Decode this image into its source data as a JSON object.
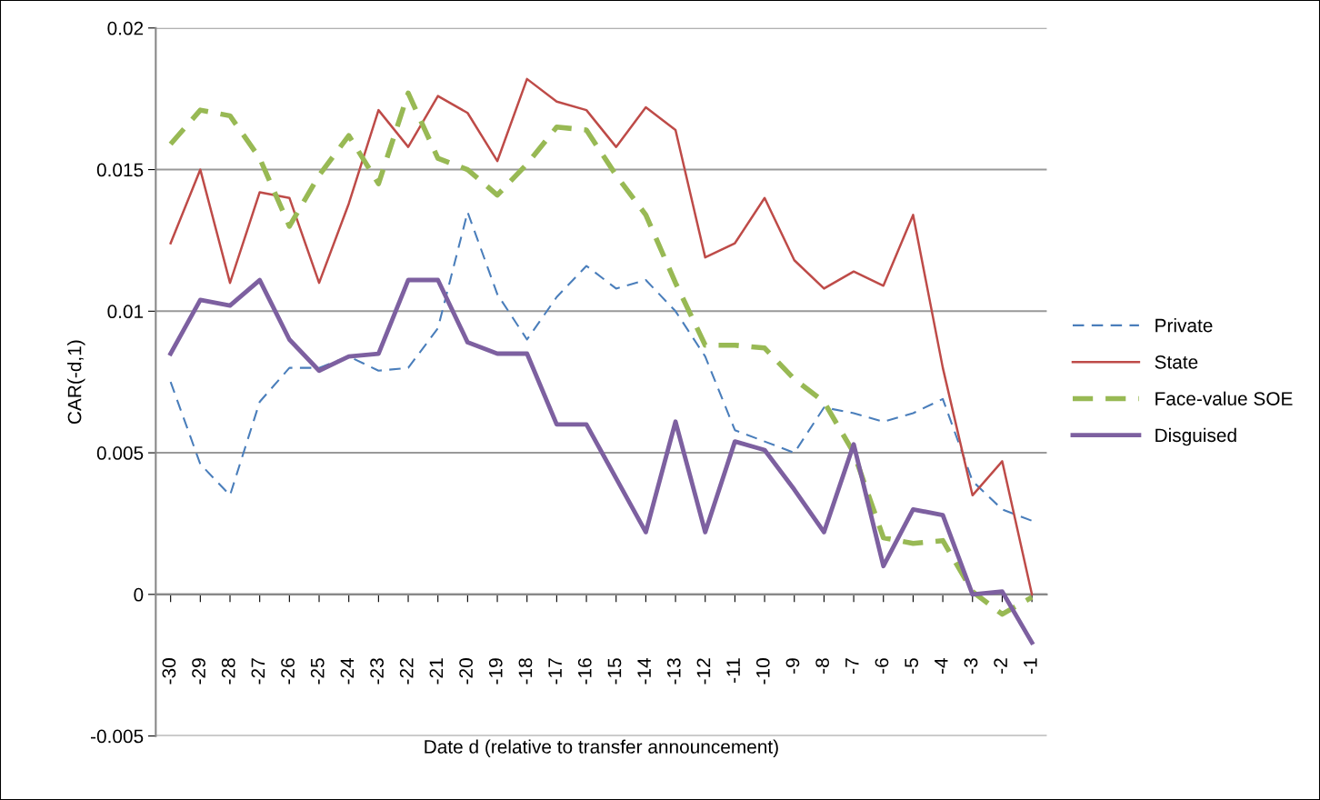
{
  "chart_data": {
    "type": "line",
    "xlabel": "Date d (relative to transfer announcement)",
    "ylabel": "CAR(-d,1)",
    "categories": [
      "-30",
      "-29",
      "-28",
      "-27",
      "-26",
      "-25",
      "-24",
      "-23",
      "-22",
      "-21",
      "-20",
      "-19",
      "-18",
      "-17",
      "-16",
      "-15",
      "-14",
      "-13",
      "-12",
      "-11",
      "-10",
      "-9",
      "-8",
      "-7",
      "-6",
      "-5",
      "-4",
      "-3",
      "-2",
      "-1"
    ],
    "series": [
      {
        "name": "Private",
        "color": "#4a7ebb",
        "line_style": "dashed",
        "values": [
          0.0075,
          0.0046,
          0.0035,
          0.0068,
          0.008,
          0.008,
          0.0084,
          0.0079,
          0.008,
          0.0094,
          0.0135,
          0.0106,
          0.009,
          0.0105,
          0.0116,
          0.0108,
          0.0111,
          0.01,
          0.0084,
          0.0058,
          0.0054,
          0.005,
          0.0066,
          0.0064,
          0.0061,
          0.0064,
          0.0069,
          0.004,
          0.003,
          0.0026
        ]
      },
      {
        "name": "State",
        "color": "#be4b48",
        "line_style": "solid",
        "values": [
          0.0124,
          0.015,
          0.011,
          0.0142,
          0.014,
          0.011,
          0.0138,
          0.0171,
          0.0158,
          0.0176,
          0.017,
          0.0153,
          0.0182,
          0.0174,
          0.0171,
          0.0158,
          0.0172,
          0.0164,
          0.0119,
          0.0124,
          0.014,
          0.0118,
          0.0108,
          0.0114,
          0.0109,
          0.0134,
          0.008,
          0.0035,
          0.0047,
          0.0
        ]
      },
      {
        "name": "Face-value SOE",
        "color": "#98b954",
        "line_style": "dashed",
        "values": [
          0.0159,
          0.0171,
          0.0169,
          0.0154,
          0.013,
          0.0148,
          0.0162,
          0.0145,
          0.0177,
          0.0154,
          0.015,
          0.0141,
          0.0152,
          0.0165,
          0.0164,
          0.0148,
          0.0134,
          0.011,
          0.0088,
          0.0088,
          0.0087,
          0.0076,
          0.0068,
          0.005,
          0.002,
          0.0018,
          0.0019,
          0.0001,
          -0.0007,
          -0.0001
        ]
      },
      {
        "name": "Disguised",
        "color": "#7d60a0",
        "line_style": "solid",
        "values": [
          0.0085,
          0.0104,
          0.0102,
          0.0111,
          0.009,
          0.0079,
          0.0084,
          0.0085,
          0.0111,
          0.0111,
          0.0089,
          0.0085,
          0.0085,
          0.006,
          0.006,
          0.0041,
          0.0022,
          0.0061,
          0.0022,
          0.0054,
          0.0051,
          0.0037,
          0.0022,
          0.0053,
          0.001,
          0.003,
          0.0028,
          0.0,
          0.0001,
          -0.0017
        ]
      }
    ],
    "ylim": [
      -0.005,
      0.02
    ],
    "yticks": [
      -0.005,
      0,
      0.005,
      0.01,
      0.015,
      0.02
    ],
    "grid": "y",
    "legend": "right",
    "marker": "none"
  }
}
